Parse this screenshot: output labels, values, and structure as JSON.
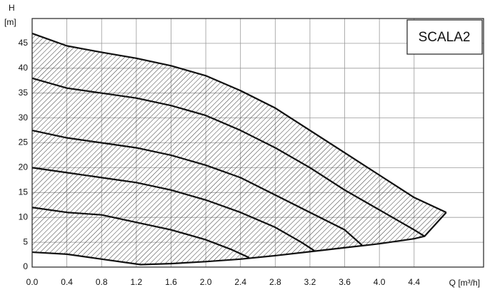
{
  "chart_data": {
    "type": "line",
    "annotation": "SCALA2",
    "y_axis_symbol": "H",
    "y_axis_unit": "[m]",
    "x_axis_label": "Q [m³/h]",
    "xlim": [
      0,
      5.2
    ],
    "ylim": [
      0,
      50
    ],
    "xticks": [
      {
        "value": 0,
        "label": "0.0"
      },
      0.4,
      0.8,
      1.2,
      1.6,
      {
        "value": 2,
        "label": "2.0"
      },
      2.4,
      2.8,
      3.2,
      3.6,
      {
        "value": 4,
        "label": "4.0"
      },
      4.4
    ],
    "yticks": [
      0,
      5,
      10,
      15,
      20,
      25,
      30,
      35,
      40,
      45
    ],
    "grid": true,
    "hatch_between": [
      0,
      1
    ],
    "color": "#111111",
    "series": [
      {
        "x": [
          0,
          0.4,
          0.8,
          1.2,
          1.6,
          2.0,
          2.4,
          2.8,
          3.2,
          3.6,
          4.0,
          4.4,
          4.77
        ],
        "values": [
          47,
          44.5,
          43.2,
          42,
          40.5,
          38.5,
          35.5,
          32,
          27.5,
          23,
          18.5,
          14,
          11
        ]
      },
      {
        "x": [
          0,
          0.4,
          0.8,
          1.25,
          1.6,
          2.0,
          2.4,
          2.8,
          3.2,
          3.6,
          4.0,
          4.4,
          4.52,
          4.77
        ],
        "values": [
          3,
          2.6,
          1.6,
          0.5,
          0.7,
          1.1,
          1.6,
          2.3,
          3.1,
          3.9,
          4.7,
          5.7,
          6.2,
          11
        ]
      },
      {
        "x": [
          0,
          0.4,
          0.8,
          1.2,
          1.6,
          2.0,
          2.4,
          2.8,
          3.2,
          3.6,
          4.0,
          4.4,
          4.52
        ],
        "values": [
          38,
          36,
          35,
          34,
          32.5,
          30.5,
          27.5,
          24,
          20,
          15.5,
          11.5,
          7.5,
          6.2
        ]
      },
      {
        "x": [
          0,
          0.4,
          0.8,
          1.2,
          1.6,
          2.0,
          2.4,
          2.8,
          3.2,
          3.6,
          3.8
        ],
        "values": [
          27.5,
          26,
          25,
          24,
          22.5,
          20.5,
          18,
          14.5,
          11,
          7.5,
          4.4
        ]
      },
      {
        "x": [
          0,
          0.4,
          0.8,
          1.2,
          1.6,
          2.0,
          2.4,
          2.8,
          3.1,
          3.25
        ],
        "values": [
          20,
          19,
          18,
          17,
          15.5,
          13.5,
          11,
          8,
          5,
          3.3
        ]
      },
      {
        "x": [
          0,
          0.4,
          0.8,
          1.2,
          1.6,
          2.0,
          2.3,
          2.5
        ],
        "values": [
          12,
          11,
          10.5,
          9,
          7.5,
          5.5,
          3.5,
          1.9
        ]
      }
    ]
  }
}
